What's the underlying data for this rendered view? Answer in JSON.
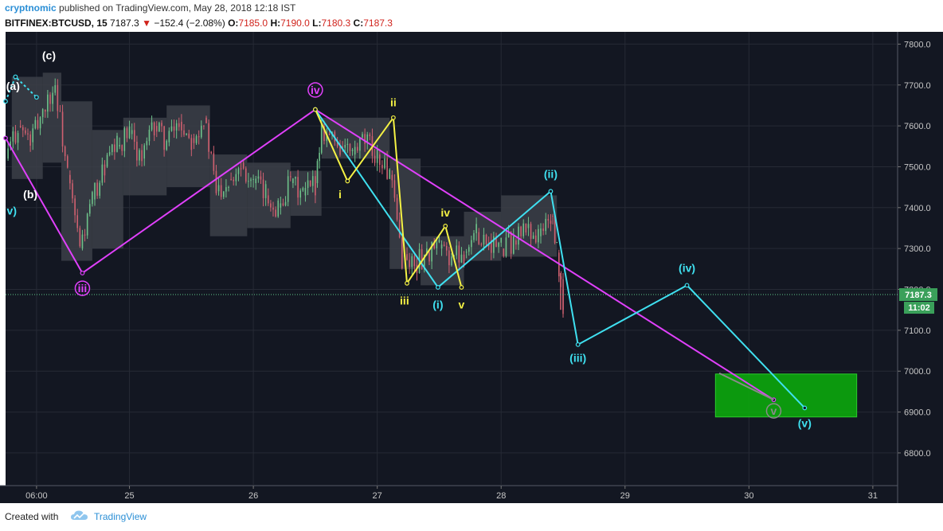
{
  "header": {
    "author": "cryptnomic",
    "published": "published on TradingView.com, May 28, 2018 12:18 IST",
    "symbol": "BITFINEX:BTCUSD, 15",
    "last": "7187.3",
    "change": "−152.4 (−2.08%)",
    "open_label": "O:",
    "open": "7185.0",
    "high_label": "H:",
    "high": "7190.0",
    "low_label": "L:",
    "low": "7180.3",
    "close_label": "C:",
    "close": "7187.3"
  },
  "footer": {
    "created": "Created with",
    "brand": "TradingView"
  },
  "colors": {
    "background": "#131722",
    "magenta": "#e040fb",
    "cyan": "#3fe0f0",
    "yellow": "#f5f244",
    "green_box": "#0ca80c",
    "price_tag": "#3aa05a",
    "candle_up": "#6ec28a",
    "candle_down": "#d06070",
    "band": "#3c3f48"
  },
  "price_tag": {
    "price": "7187.3",
    "countdown": "11:02"
  },
  "chart_data": {
    "type": "line",
    "x_unit": "day of May 2018",
    "xlim": [
      24.0,
      31.2
    ],
    "ylim": [
      6720,
      7830
    ],
    "x_ticks": [
      {
        "x": 24.25,
        "label": "06:00"
      },
      {
        "x": 25,
        "label": "25"
      },
      {
        "x": 26,
        "label": "26"
      },
      {
        "x": 27,
        "label": "27"
      },
      {
        "x": 28,
        "label": "28"
      },
      {
        "x": 29,
        "label": "29"
      },
      {
        "x": 30,
        "label": "30"
      },
      {
        "x": 31,
        "label": "31"
      }
    ],
    "y_ticks": [
      6800,
      6900,
      7000,
      7100,
      7200,
      7300,
      7400,
      7500,
      7600,
      7700,
      7800
    ],
    "y_tick_labels": [
      "6800.0",
      "6900.0",
      "7000.0",
      "7100.0",
      "7200.0",
      "7300.0",
      "7400.0",
      "7500.0",
      "7600.0",
      "7700.0",
      "7800.0"
    ],
    "current_price": 7187.3,
    "series": [
      {
        "color": "#e040fb",
        "points": [
          [
            24.0,
            7570
          ],
          [
            24.62,
            7240
          ],
          [
            26.5,
            7640
          ],
          [
            30.2,
            6930
          ]
        ]
      },
      {
        "color": "#3fe0f0",
        "points": [
          [
            26.5,
            7640
          ],
          [
            27.49,
            7205
          ],
          [
            28.4,
            7440
          ],
          [
            28.62,
            7065
          ],
          [
            29.5,
            7210
          ],
          [
            30.45,
            6910
          ]
        ]
      },
      {
        "color": "#f5f244",
        "points": [
          [
            26.5,
            7640
          ],
          [
            26.76,
            7465
          ],
          [
            27.13,
            7620
          ],
          [
            27.24,
            7215
          ],
          [
            27.55,
            7355
          ],
          [
            27.68,
            7205
          ]
        ]
      },
      {
        "color": "#3fe0f0",
        "dashed": true,
        "points": [
          [
            24.0,
            7660
          ],
          [
            24.08,
            7720
          ],
          [
            24.25,
            7670
          ]
        ]
      }
    ],
    "wave_labels": [
      {
        "text": "(c)",
        "x": 24.35,
        "y": 7765,
        "color": "#ffffff"
      },
      {
        "text": "(a)",
        "x": 24.06,
        "y": 7690,
        "color": "#ffffff"
      },
      {
        "text": "(b)",
        "x": 24.2,
        "y": 7425,
        "color": "#ffffff"
      },
      {
        "text": "v)",
        "x": 24.05,
        "y": 7385,
        "color": "#3fe0f0"
      },
      {
        "text": "iii",
        "x": 24.62,
        "y": 7195,
        "color": "#e040fb",
        "circled": true
      },
      {
        "text": "iv",
        "x": 26.5,
        "y": 7680,
        "color": "#e040fb",
        "circled": true
      },
      {
        "text": "ii",
        "x": 27.13,
        "y": 7650,
        "color": "#f5f244"
      },
      {
        "text": "i",
        "x": 26.7,
        "y": 7425,
        "color": "#f5f244"
      },
      {
        "text": "iv",
        "x": 27.55,
        "y": 7380,
        "color": "#f5f244"
      },
      {
        "text": "iii",
        "x": 27.22,
        "y": 7165,
        "color": "#f5f244"
      },
      {
        "text": "v",
        "x": 27.68,
        "y": 7155,
        "color": "#f5f244"
      },
      {
        "text": "(i)",
        "x": 27.49,
        "y": 7155,
        "color": "#3fe0f0"
      },
      {
        "text": "(ii)",
        "x": 28.4,
        "y": 7475,
        "color": "#3fe0f0"
      },
      {
        "text": "(iii)",
        "x": 28.62,
        "y": 7025,
        "color": "#3fe0f0"
      },
      {
        "text": "(iv)",
        "x": 29.5,
        "y": 7245,
        "color": "#3fe0f0"
      },
      {
        "text": "(v)",
        "x": 30.45,
        "y": 6865,
        "color": "#3fe0f0"
      },
      {
        "text": "v",
        "x": 30.2,
        "y": 6895,
        "color": "#8a8a8a",
        "circled": true
      }
    ],
    "target_box": {
      "x0": 29.73,
      "x1": 30.87,
      "y0": 6888,
      "y1": 6993,
      "color": "#0ca80c"
    },
    "bands": [
      {
        "x0": 24.05,
        "x1": 24.3,
        "low": 7470,
        "high": 7720
      },
      {
        "x0": 24.3,
        "x1": 24.45,
        "low": 7510,
        "high": 7730
      },
      {
        "x0": 24.45,
        "x1": 24.7,
        "low": 7270,
        "high": 7660
      },
      {
        "x0": 24.7,
        "x1": 24.95,
        "low": 7300,
        "high": 7590
      },
      {
        "x0": 24.95,
        "x1": 25.3,
        "low": 7430,
        "high": 7620
      },
      {
        "x0": 25.3,
        "x1": 25.65,
        "low": 7450,
        "high": 7650
      },
      {
        "x0": 25.65,
        "x1": 25.95,
        "low": 7330,
        "high": 7530
      },
      {
        "x0": 25.95,
        "x1": 26.3,
        "low": 7350,
        "high": 7510
      },
      {
        "x0": 26.3,
        "x1": 26.55,
        "low": 7380,
        "high": 7490
      },
      {
        "x0": 26.55,
        "x1": 27.1,
        "low": 7520,
        "high": 7620
      },
      {
        "x0": 27.1,
        "x1": 27.35,
        "low": 7250,
        "high": 7520
      },
      {
        "x0": 27.35,
        "x1": 27.7,
        "low": 7210,
        "high": 7330
      },
      {
        "x0": 27.7,
        "x1": 28.0,
        "low": 7270,
        "high": 7390
      },
      {
        "x0": 28.0,
        "x1": 28.45,
        "low": 7280,
        "high": 7430
      }
    ],
    "price_segments": [
      [
        24.0,
        7520
      ],
      [
        24.1,
        7600
      ],
      [
        24.2,
        7560
      ],
      [
        24.3,
        7640
      ],
      [
        24.4,
        7700
      ],
      [
        24.5,
        7480
      ],
      [
        24.6,
        7300
      ],
      [
        24.7,
        7420
      ],
      [
        24.8,
        7500
      ],
      [
        24.9,
        7550
      ],
      [
        25.0,
        7580
      ],
      [
        25.1,
        7520
      ],
      [
        25.2,
        7600
      ],
      [
        25.3,
        7560
      ],
      [
        25.4,
        7610
      ],
      [
        25.5,
        7570
      ],
      [
        25.6,
        7620
      ],
      [
        25.7,
        7440
      ],
      [
        25.8,
        7470
      ],
      [
        25.9,
        7510
      ],
      [
        26.0,
        7460
      ],
      [
        26.1,
        7430
      ],
      [
        26.2,
        7400
      ],
      [
        26.3,
        7460
      ],
      [
        26.4,
        7430
      ],
      [
        26.5,
        7460
      ],
      [
        26.55,
        7600
      ],
      [
        26.7,
        7550
      ],
      [
        26.8,
        7530
      ],
      [
        26.9,
        7560
      ],
      [
        27.0,
        7530
      ],
      [
        27.1,
        7480
      ],
      [
        27.2,
        7280
      ],
      [
        27.3,
        7260
      ],
      [
        27.4,
        7290
      ],
      [
        27.5,
        7300
      ],
      [
        27.6,
        7280
      ],
      [
        27.7,
        7290
      ],
      [
        27.8,
        7340
      ],
      [
        27.9,
        7320
      ],
      [
        28.0,
        7300
      ],
      [
        28.1,
        7320
      ],
      [
        28.2,
        7350
      ],
      [
        28.3,
        7330
      ],
      [
        28.4,
        7380
      ],
      [
        28.45,
        7290
      ],
      [
        28.5,
        7160
      ]
    ]
  }
}
